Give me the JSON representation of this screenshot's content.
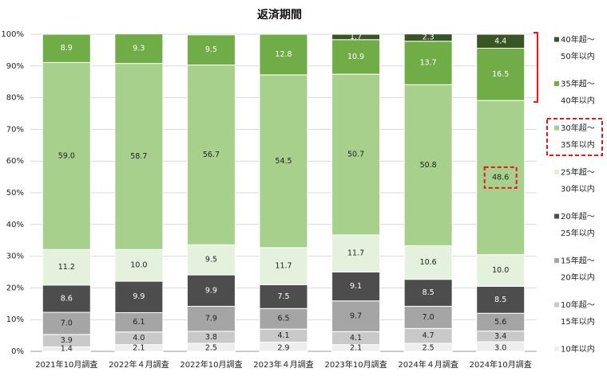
{
  "chart_data": {
    "type": "bar",
    "stacked": true,
    "normalized": true,
    "title": "返済期間",
    "xlabel": "",
    "ylabel": "",
    "ylim": [
      0,
      100
    ],
    "y_ticks": [
      "0%",
      "10%",
      "20%",
      "30%",
      "40%",
      "50%",
      "60%",
      "70%",
      "80%",
      "90%",
      "100%"
    ],
    "categories": [
      "2021年10月調査",
      "2022年４月調査",
      "2022年10月調査",
      "2023年４月調査",
      "2023年10月調査",
      "2024年４月調査",
      "2024年10月調査"
    ],
    "series": [
      {
        "name": "10年以内",
        "legend": [
          "10年以内"
        ],
        "color": "#eeeeee",
        "text_color": "#222222",
        "values": [
          1.4,
          2.1,
          2.5,
          2.9,
          2.1,
          2.5,
          3.0
        ]
      },
      {
        "name": "10年超～15年以内",
        "legend": [
          "10年超～",
          "15年以内"
        ],
        "color": "#c9c9c9",
        "text_color": "#222222",
        "values": [
          3.9,
          4.0,
          3.8,
          4.1,
          4.1,
          4.7,
          3.4
        ]
      },
      {
        "name": "15年超～20年以内",
        "legend": [
          "15年超～",
          "20年以内"
        ],
        "color": "#a5a5a5",
        "text_color": "#222222",
        "values": [
          7.0,
          6.1,
          7.9,
          6.5,
          9.7,
          7.0,
          5.6
        ]
      },
      {
        "name": "20年超～25年以内",
        "legend": [
          "20年超～",
          "25年以内"
        ],
        "color": "#4d4d4d",
        "text_color": "#ffffff",
        "values": [
          8.6,
          9.9,
          9.9,
          7.5,
          9.1,
          8.5,
          8.5
        ]
      },
      {
        "name": "25年超～30年以内",
        "legend": [
          "25年超～",
          "30年以内"
        ],
        "color": "#e4f1dc",
        "text_color": "#222222",
        "values": [
          11.2,
          10.0,
          9.5,
          11.7,
          11.7,
          10.6,
          10.0
        ]
      },
      {
        "name": "30年超～35年以内",
        "legend": [
          "30年超～",
          "35年以内"
        ],
        "color": "#a8d08d",
        "text_color": "#222222",
        "values": [
          59.0,
          58.7,
          56.7,
          54.5,
          50.7,
          50.8,
          48.6
        ]
      },
      {
        "name": "35年超～40年以内",
        "legend": [
          "35年超～",
          "40年以内"
        ],
        "color": "#70ad47",
        "text_color": "#ffffff",
        "values": [
          8.9,
          9.3,
          9.5,
          12.8,
          10.9,
          13.7,
          16.5
        ]
      },
      {
        "name": "40年超～50年以内",
        "legend": [
          "40年超～",
          "50年以内"
        ],
        "color": "#375623",
        "text_color": "#ffffff",
        "values": [
          0,
          0,
          0,
          0,
          1.7,
          2.3,
          4.4
        ]
      }
    ],
    "annotations": [
      {
        "type": "dashed-box",
        "color": "#e8131b",
        "target": "30年超～35年以内 2024年10月調査 48.6"
      },
      {
        "type": "dashed-box",
        "color": "#e8131b",
        "target": "legend 30年超～35年以内"
      },
      {
        "type": "bracket",
        "color": "#e8131b",
        "target": "legend 35年超～40年以内 and 40年超～50年以内"
      }
    ],
    "legend_position": "right"
  }
}
